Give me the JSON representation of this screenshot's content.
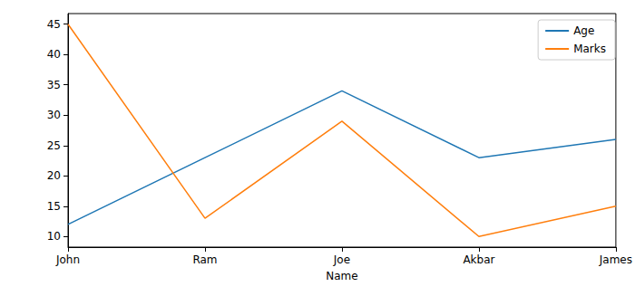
{
  "chart_data": {
    "type": "line",
    "categories": [
      "John",
      "Ram",
      "Joe",
      "Akbar",
      "James"
    ],
    "series": [
      {
        "name": "Age",
        "color": "#1f77b4",
        "values": [
          12,
          23,
          34,
          23,
          26
        ]
      },
      {
        "name": "Marks",
        "color": "#ff7f0e",
        "values": [
          45,
          13,
          29,
          10,
          15
        ]
      }
    ],
    "xlabel": "Name",
    "ylim": [
      8.25,
      46.75
    ],
    "yticks": [
      10,
      15,
      20,
      25,
      30,
      35,
      40,
      45
    ],
    "legend": "upper right",
    "grid": false
  }
}
